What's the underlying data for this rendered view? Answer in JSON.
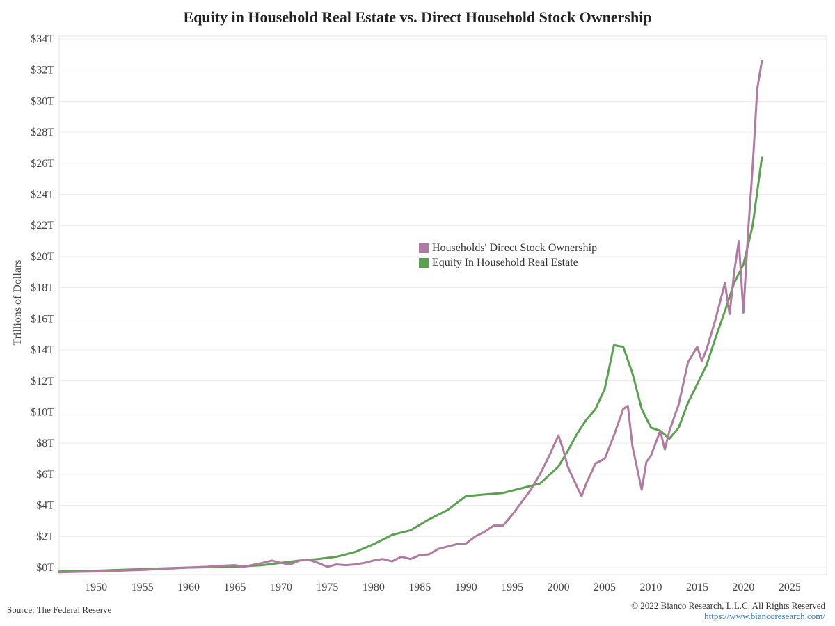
{
  "chart_data": {
    "type": "line",
    "title": "Equity in Household Real Estate vs. Direct Household Stock Ownership",
    "ylabel": "Trillions of Dollars",
    "xlabel": "",
    "xlim": [
      1946,
      2029
    ],
    "ylim": [
      0,
      34
    ],
    "x_ticks": [
      1950,
      1955,
      1960,
      1965,
      1970,
      1975,
      1980,
      1985,
      1990,
      1995,
      2000,
      2005,
      2010,
      2015,
      2020,
      2025
    ],
    "y_ticks": [
      0,
      2,
      4,
      6,
      8,
      10,
      12,
      14,
      16,
      18,
      20,
      22,
      24,
      26,
      28,
      30,
      32,
      34
    ],
    "y_tick_labels": [
      "$0T",
      "$2T",
      "$4T",
      "$6T",
      "$8T",
      "$10T",
      "$12T",
      "$14T",
      "$16T",
      "$18T",
      "$20T",
      "$22T",
      "$24T",
      "$26T",
      "$28T",
      "$30T",
      "$32T",
      "$34T"
    ],
    "grid": "horizontal",
    "legend_position": "center-right",
    "series": [
      {
        "name": "Households' Direct Stock Ownership",
        "color": "#b07aa1",
        "points": [
          [
            1946,
            -0.3
          ],
          [
            1950,
            -0.25
          ],
          [
            1955,
            -0.15
          ],
          [
            1960,
            0.0
          ],
          [
            1962,
            0.05
          ],
          [
            1963,
            0.1
          ],
          [
            1965,
            0.15
          ],
          [
            1966,
            0.05
          ],
          [
            1968,
            0.3
          ],
          [
            1969,
            0.45
          ],
          [
            1970,
            0.3
          ],
          [
            1971,
            0.2
          ],
          [
            1972,
            0.45
          ],
          [
            1973,
            0.5
          ],
          [
            1974,
            0.3
          ],
          [
            1975,
            0.05
          ],
          [
            1976,
            0.2
          ],
          [
            1977,
            0.15
          ],
          [
            1978,
            0.2
          ],
          [
            1979,
            0.3
          ],
          [
            1980,
            0.45
          ],
          [
            1981,
            0.55
          ],
          [
            1982,
            0.4
          ],
          [
            1983,
            0.7
          ],
          [
            1984,
            0.55
          ],
          [
            1985,
            0.8
          ],
          [
            1986,
            0.85
          ],
          [
            1987,
            1.2
          ],
          [
            1988,
            1.35
          ],
          [
            1989,
            1.5
          ],
          [
            1990,
            1.55
          ],
          [
            1991,
            2.0
          ],
          [
            1992,
            2.3
          ],
          [
            1993,
            2.7
          ],
          [
            1994,
            2.7
          ],
          [
            1995,
            3.4
          ],
          [
            1996,
            4.2
          ],
          [
            1997,
            5.0
          ],
          [
            1998,
            6.0
          ],
          [
            1999,
            7.2
          ],
          [
            2000,
            8.5
          ],
          [
            2000.5,
            7.6
          ],
          [
            2001,
            6.5
          ],
          [
            2002,
            5.2
          ],
          [
            2002.5,
            4.6
          ],
          [
            2003,
            5.4
          ],
          [
            2004,
            6.7
          ],
          [
            2005,
            7.0
          ],
          [
            2006,
            8.5
          ],
          [
            2007,
            10.2
          ],
          [
            2007.5,
            10.4
          ],
          [
            2008,
            7.8
          ],
          [
            2009,
            5.0
          ],
          [
            2009.5,
            6.8
          ],
          [
            2010,
            7.2
          ],
          [
            2011,
            8.8
          ],
          [
            2011.5,
            7.6
          ],
          [
            2012,
            8.8
          ],
          [
            2013,
            10.5
          ],
          [
            2014,
            13.2
          ],
          [
            2015,
            14.2
          ],
          [
            2015.5,
            13.3
          ],
          [
            2016,
            14.0
          ],
          [
            2017,
            16.0
          ],
          [
            2018,
            18.3
          ],
          [
            2018.5,
            16.3
          ],
          [
            2019,
            19.0
          ],
          [
            2019.5,
            21.0
          ],
          [
            2020,
            16.4
          ],
          [
            2020.5,
            21.5
          ],
          [
            2021,
            25.8
          ],
          [
            2021.5,
            30.8
          ],
          [
            2022,
            32.6
          ]
        ]
      },
      {
        "name": "Equity In Household Real Estate",
        "color": "#59a14f",
        "points": [
          [
            1946,
            -0.25
          ],
          [
            1950,
            -0.2
          ],
          [
            1955,
            -0.1
          ],
          [
            1960,
            0.0
          ],
          [
            1965,
            0.05
          ],
          [
            1968,
            0.15
          ],
          [
            1970,
            0.3
          ],
          [
            1972,
            0.45
          ],
          [
            1974,
            0.55
          ],
          [
            1976,
            0.7
          ],
          [
            1978,
            1.0
          ],
          [
            1980,
            1.5
          ],
          [
            1982,
            2.1
          ],
          [
            1984,
            2.4
          ],
          [
            1986,
            3.1
          ],
          [
            1988,
            3.7
          ],
          [
            1990,
            4.6
          ],
          [
            1992,
            4.7
          ],
          [
            1994,
            4.8
          ],
          [
            1996,
            5.1
          ],
          [
            1998,
            5.4
          ],
          [
            2000,
            6.5
          ],
          [
            2001,
            7.5
          ],
          [
            2002,
            8.6
          ],
          [
            2003,
            9.5
          ],
          [
            2004,
            10.2
          ],
          [
            2005,
            11.5
          ],
          [
            2006,
            14.3
          ],
          [
            2007,
            14.2
          ],
          [
            2008,
            12.5
          ],
          [
            2009,
            10.2
          ],
          [
            2010,
            9.0
          ],
          [
            2011,
            8.8
          ],
          [
            2012,
            8.3
          ],
          [
            2013,
            9.0
          ],
          [
            2014,
            10.6
          ],
          [
            2015,
            11.8
          ],
          [
            2016,
            13.0
          ],
          [
            2017,
            14.8
          ],
          [
            2018,
            16.5
          ],
          [
            2019,
            18.3
          ],
          [
            2020,
            19.5
          ],
          [
            2021,
            22.0
          ],
          [
            2022,
            26.4
          ]
        ]
      }
    ]
  },
  "source": "Source: The Federal Reserve",
  "copyright": "© 2022 Bianco Research, L.L.C. All Rights Reserved",
  "url": "https://www.biancoresearch.com/"
}
